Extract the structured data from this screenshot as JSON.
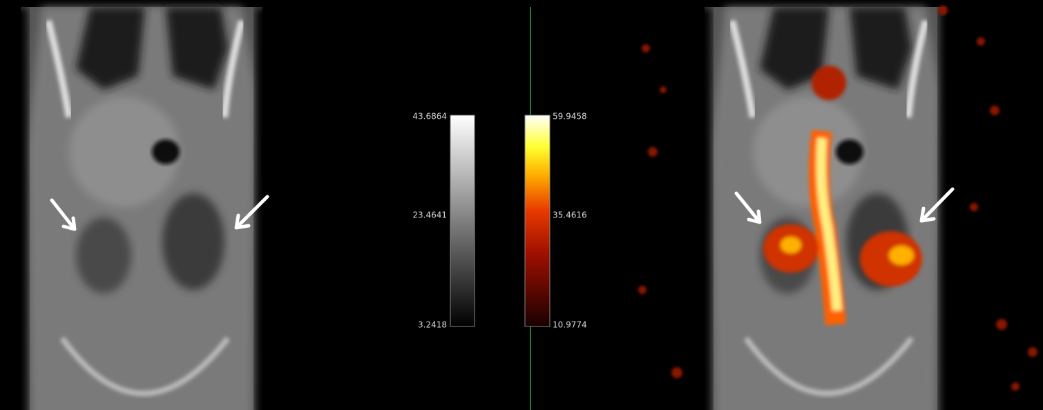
{
  "colorbars": [
    {
      "labels": [
        "43.6864",
        "23.4641",
        "3.2418"
      ]
    },
    {
      "labels": [
        "59.9458",
        "35.4616",
        "10.9774"
      ]
    }
  ]
}
